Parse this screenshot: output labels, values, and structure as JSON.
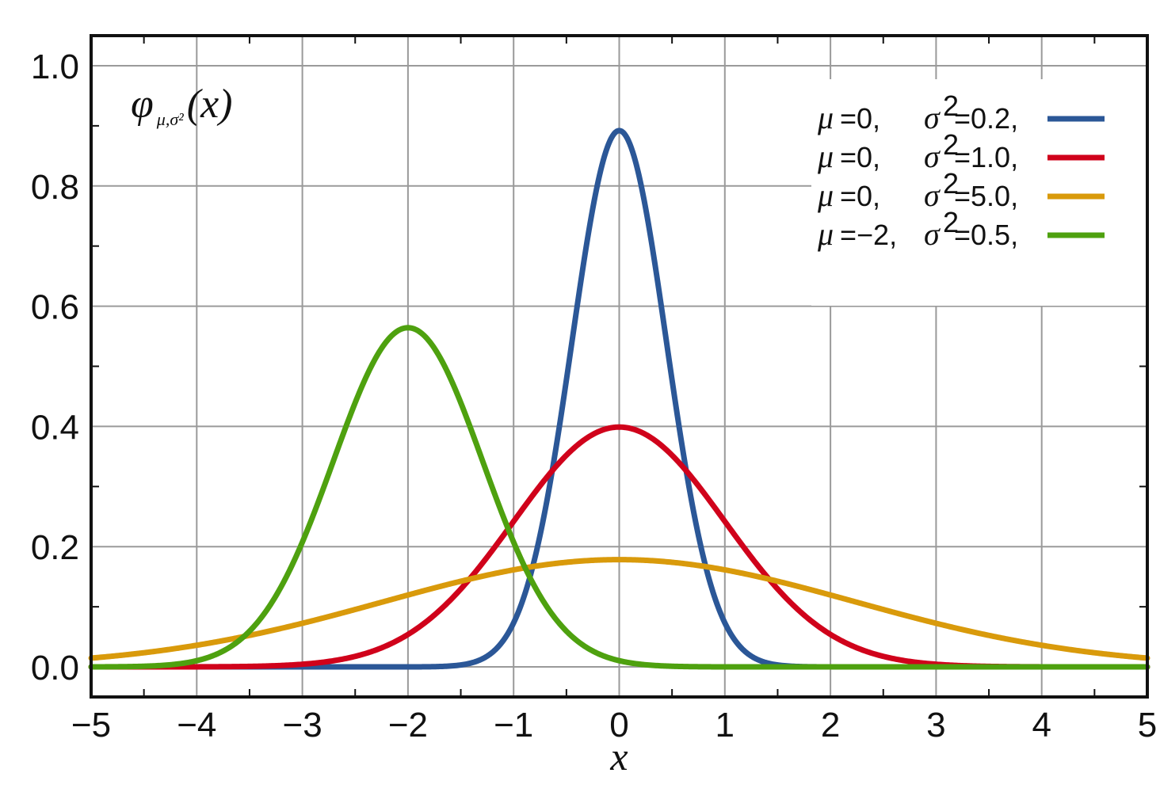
{
  "chart_data": {
    "type": "line",
    "title": "",
    "xlabel": "x",
    "ylabel": "",
    "function_label": {
      "symbol": "φ",
      "subscript": "μ,σ²",
      "argument": "(x)"
    },
    "xlim": [
      -5,
      5
    ],
    "ylim": [
      -0.05,
      1.05
    ],
    "x_ticks": [
      -5,
      -4,
      -3,
      -2,
      -1,
      0,
      1,
      2,
      3,
      4,
      5
    ],
    "x_tick_labels": [
      "−5",
      "−4",
      "−3",
      "−2",
      "−1",
      "0",
      "1",
      "2",
      "3",
      "4",
      "5"
    ],
    "y_ticks": [
      0.0,
      0.2,
      0.4,
      0.6,
      0.8,
      1.0
    ],
    "y_tick_labels": [
      "0.0",
      "0.2",
      "0.4",
      "0.6",
      "0.8",
      "1.0"
    ],
    "grid": true,
    "legend_position": "top-right",
    "series": [
      {
        "name": "μ=0,  σ²=0.2,",
        "mu_text": "0,",
        "sigma2_text": "0.2,",
        "mu": 0,
        "sigma2": 0.2,
        "color": "#2b5797",
        "x": [
          -5,
          -2,
          -1.5,
          -1,
          -0.75,
          -0.5,
          -0.25,
          0,
          0.25,
          0.5,
          0.75,
          1,
          1.5,
          2,
          5
        ],
        "y": [
          0,
          0,
          0.003,
          0.073,
          0.219,
          0.479,
          0.762,
          0.892,
          0.762,
          0.479,
          0.219,
          0.073,
          0.003,
          0,
          0
        ]
      },
      {
        "name": "μ=0,  σ²=1.0,",
        "mu_text": "0,",
        "sigma2_text": "1.0,",
        "mu": 0,
        "sigma2": 1.0,
        "color": "#d0021b",
        "x": [
          -5,
          -4,
          -3,
          -2.5,
          -2,
          -1.5,
          -1,
          -0.5,
          0,
          0.5,
          1,
          1.5,
          2,
          2.5,
          3,
          4,
          5
        ],
        "y": [
          0,
          0.0001,
          0.004,
          0.018,
          0.054,
          0.13,
          0.242,
          0.352,
          0.399,
          0.352,
          0.242,
          0.13,
          0.054,
          0.018,
          0.004,
          0.0001,
          0
        ]
      },
      {
        "name": "μ=0,  σ²=5.0,",
        "mu_text": "0,",
        "sigma2_text": "5.0,",
        "mu": 0,
        "sigma2": 5.0,
        "color": "#d99a0b",
        "x": [
          -5,
          -4,
          -3,
          -2,
          -1,
          0,
          1,
          2,
          3,
          4,
          5
        ],
        "y": [
          0.015,
          0.036,
          0.073,
          0.119,
          0.16,
          0.178,
          0.16,
          0.119,
          0.073,
          0.036,
          0.015
        ]
      },
      {
        "name": "μ=−2, σ²=0.5,",
        "mu_text": "−2,",
        "sigma2_text": "0.5,",
        "mu": -2,
        "sigma2": 0.5,
        "color": "#4ea10f",
        "x": [
          -5,
          -4,
          -3.5,
          -3,
          -2.5,
          -2,
          -1.5,
          -1,
          -0.5,
          0,
          1,
          5
        ],
        "y": [
          0,
          0.01,
          0.059,
          0.208,
          0.441,
          0.564,
          0.441,
          0.208,
          0.059,
          0.01,
          0,
          0
        ]
      }
    ]
  }
}
